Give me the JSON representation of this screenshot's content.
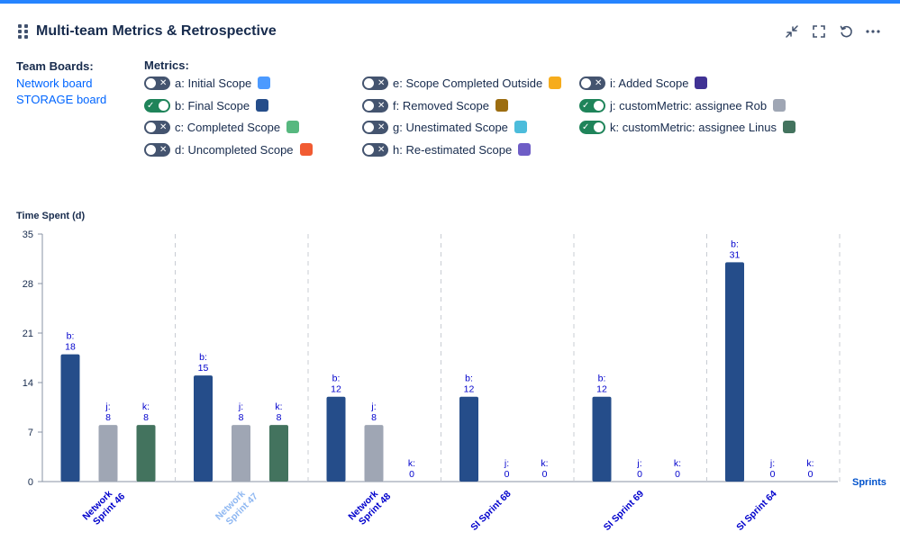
{
  "header": {
    "title": "Multi-team Metrics & Retrospective"
  },
  "icons": {
    "drag": "drag-handle-icon",
    "minimize": "minimize-icon",
    "fullscreen": "fullscreen-icon",
    "refresh": "refresh-icon",
    "more": "more-icon"
  },
  "team_boards": {
    "label": "Team Boards:",
    "items": [
      "Network board",
      "STORAGE board"
    ]
  },
  "metrics": {
    "label": "Metrics:",
    "items": [
      {
        "label": "a: Initial Scope",
        "on": false,
        "color": "#4c9aff"
      },
      {
        "label": "b: Final Scope",
        "on": true,
        "color": "#254d8a"
      },
      {
        "label": "c: Completed Scope",
        "on": false,
        "color": "#57b87f"
      },
      {
        "label": "d: Uncompleted Scope",
        "on": false,
        "color": "#f15b32"
      },
      {
        "label": "e: Scope Completed Outside",
        "on": false,
        "color": "#f6ac1c"
      },
      {
        "label": "f: Removed Scope",
        "on": false,
        "color": "#9c6d10"
      },
      {
        "label": "g: Unestimated Scope",
        "on": false,
        "color": "#4cbcdb"
      },
      {
        "label": "h: Re-estimated Scope",
        "on": false,
        "color": "#6e5dc6"
      },
      {
        "label": "i: Added Scope",
        "on": false,
        "color": "#403294"
      },
      {
        "label": "j: customMetric: assignee Rob",
        "on": true,
        "color": "#9fa6b4"
      },
      {
        "label": "k: customMetric: assignee Linus",
        "on": true,
        "color": "#43735e"
      }
    ]
  },
  "chart_data": {
    "type": "bar",
    "ylabel": "Time Spent (d)",
    "xlabel": "Sprints",
    "ylim": [
      0,
      35
    ],
    "yticks": [
      0,
      7,
      14,
      21,
      28,
      35
    ],
    "categories": [
      {
        "line1": "Network",
        "line2": "Sprint 46",
        "dim": false
      },
      {
        "line1": "Network",
        "line2": "Sprint 47",
        "dim": true
      },
      {
        "line1": "Network",
        "line2": "Sprint 48",
        "dim": false
      },
      {
        "line1": "SI Sprint 68",
        "line2": "",
        "dim": false
      },
      {
        "line1": "SI Sprint 69",
        "line2": "",
        "dim": false
      },
      {
        "line1": "SI Sprint 64",
        "line2": "",
        "dim": false
      }
    ],
    "series": [
      {
        "name": "b",
        "label": "b:",
        "color": "#254d8a",
        "values": [
          18,
          15,
          12,
          12,
          12,
          31
        ]
      },
      {
        "name": "j",
        "label": "j:",
        "color": "#9fa6b4",
        "values": [
          8,
          8,
          8,
          0,
          0,
          0
        ]
      },
      {
        "name": "k",
        "label": "k:",
        "color": "#43735e",
        "values": [
          8,
          8,
          0,
          0,
          0,
          0
        ]
      }
    ]
  }
}
